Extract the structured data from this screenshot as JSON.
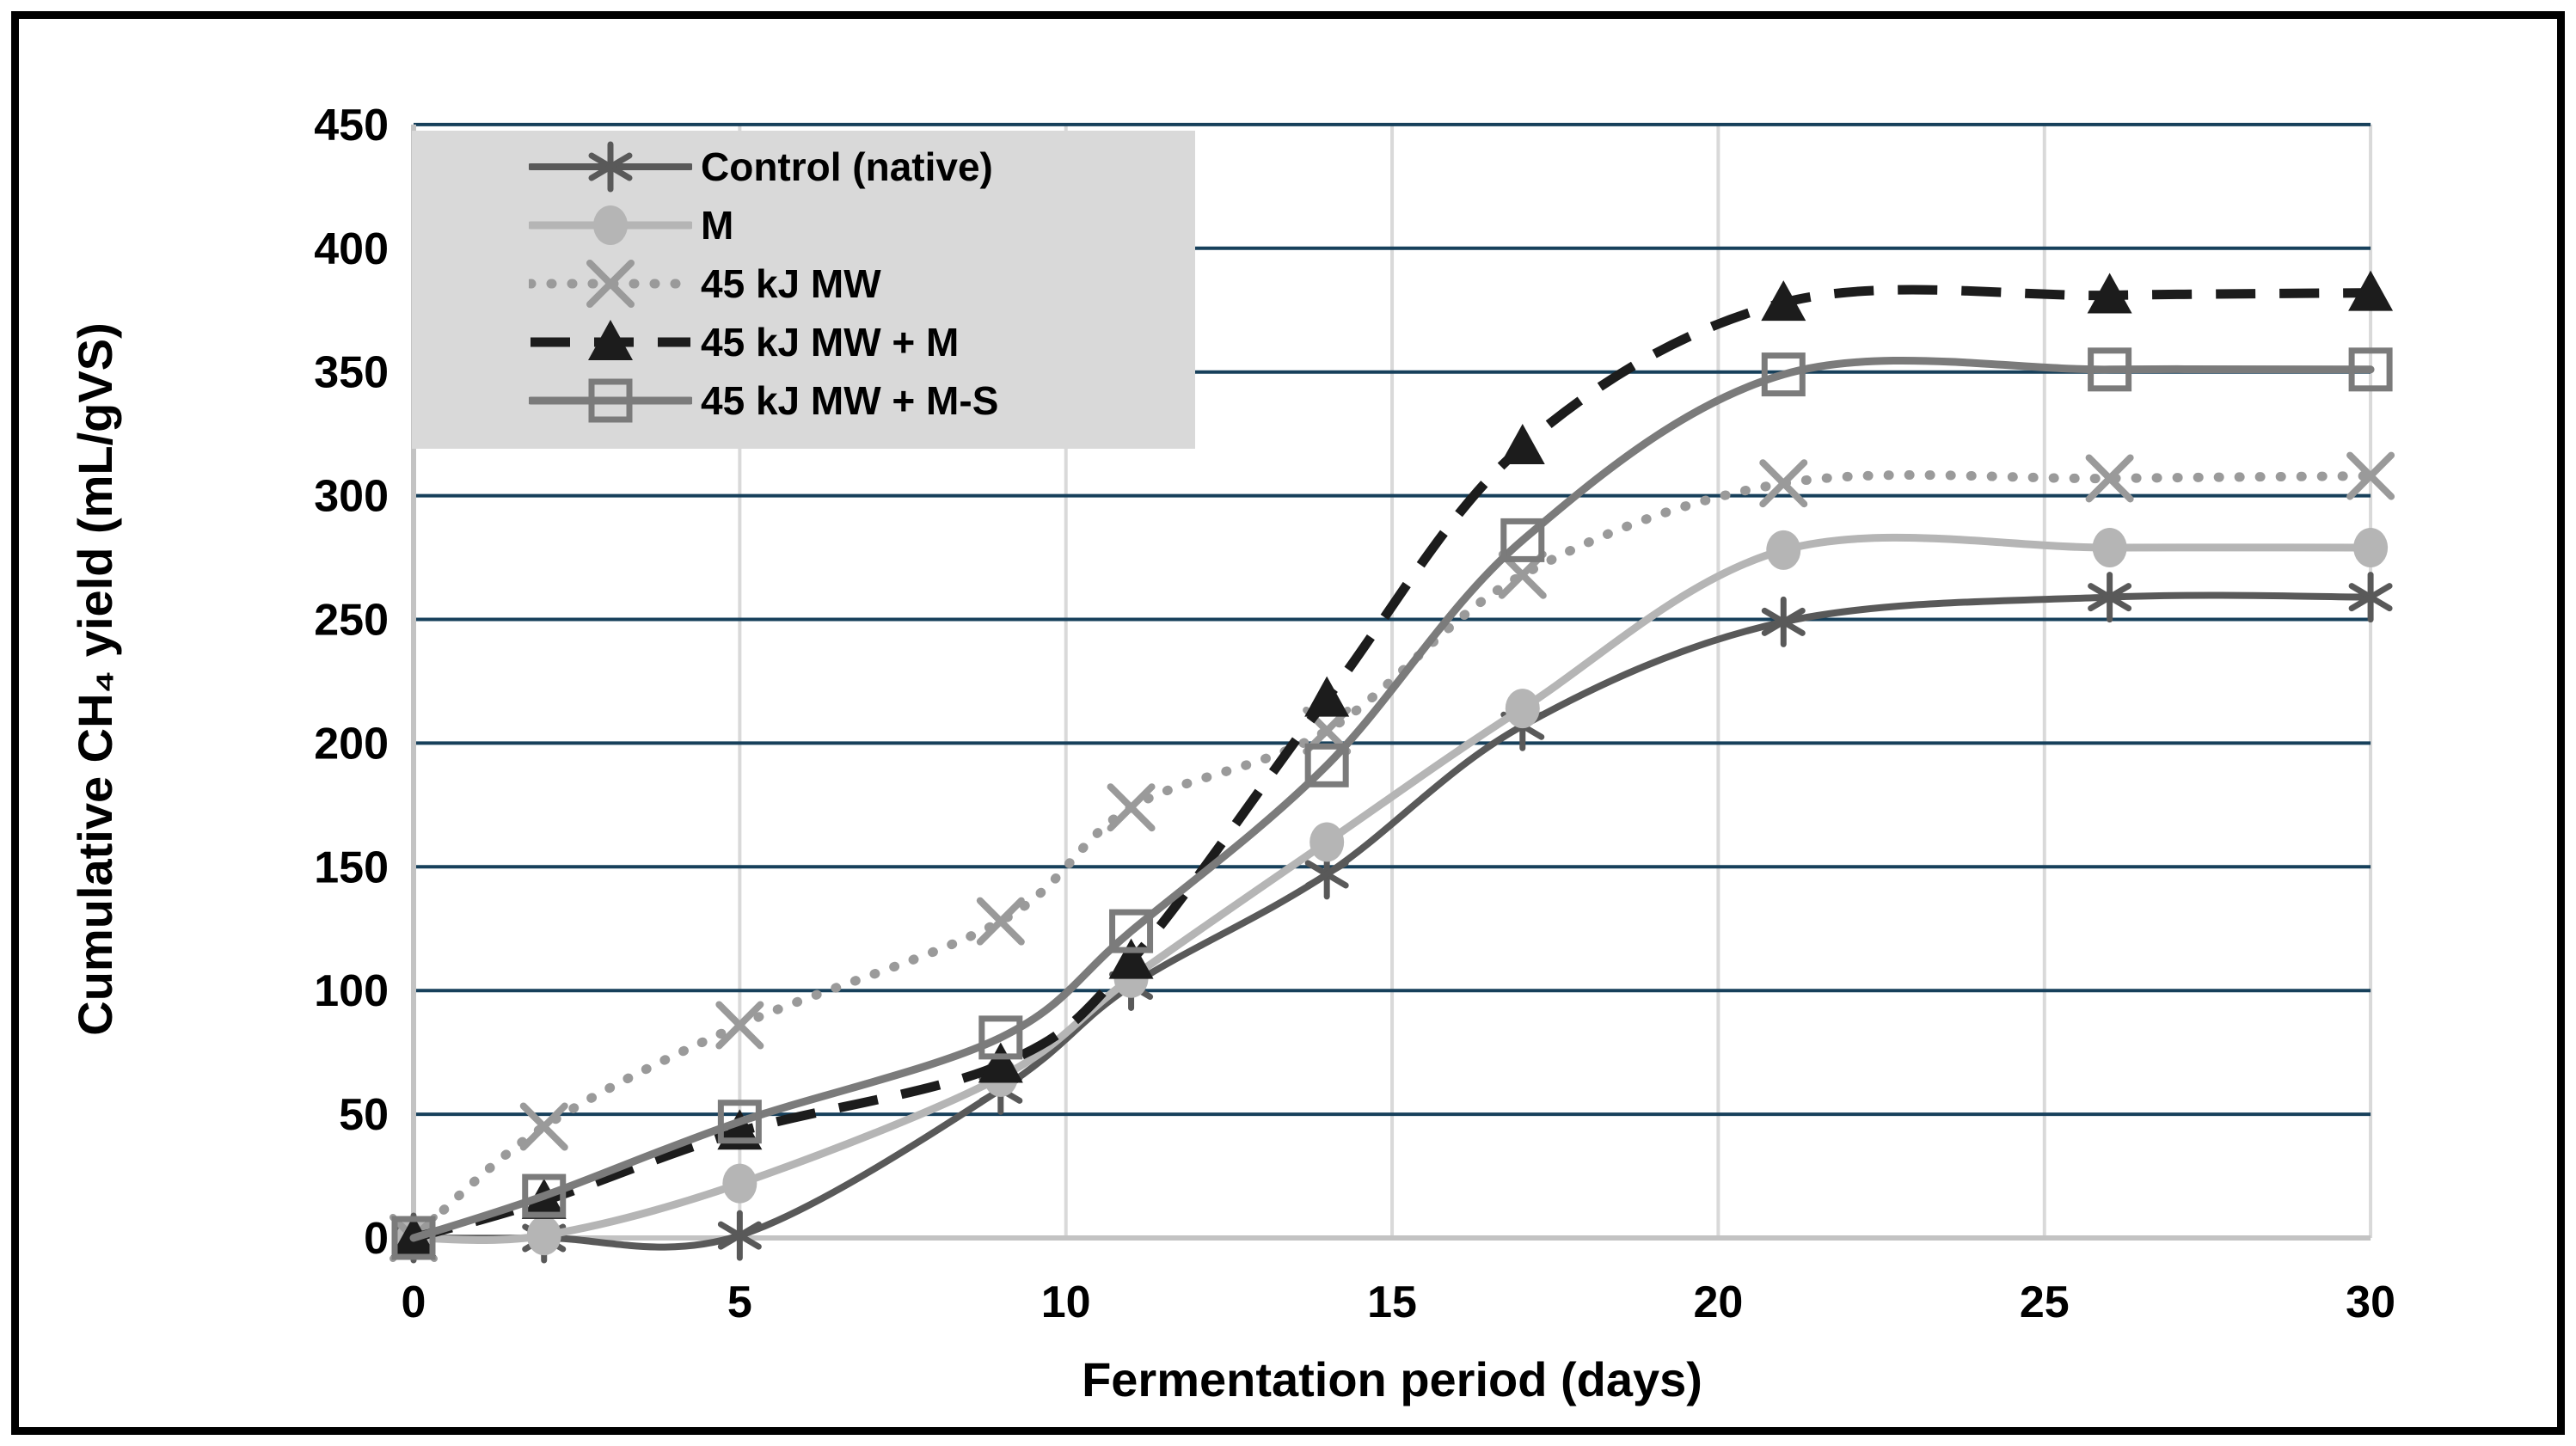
{
  "chart_data": {
    "type": "line",
    "title": "",
    "xlabel": "Fermentation period (days)",
    "ylabel": "Cumulative CH₄ yield (mL/gVS)",
    "x": [
      0,
      2,
      5,
      9,
      11,
      14,
      17,
      21,
      26,
      30
    ],
    "series": [
      {
        "name": "Control (native)",
        "values": [
          0,
          0,
          1,
          60,
          102,
          147,
          207,
          249,
          259,
          259
        ],
        "color": "#595959",
        "style": "solid",
        "marker": "asterisk"
      },
      {
        "name": "M",
        "values": [
          0,
          1,
          22,
          65,
          105,
          160,
          214,
          278,
          279,
          279
        ],
        "color": "#b5b5b5",
        "style": "solid",
        "marker": "circle-filled"
      },
      {
        "name": "45 kJ MW",
        "values": [
          0,
          45,
          86,
          128,
          174,
          205,
          268,
          305,
          307,
          308
        ],
        "color": "#9a9a9a",
        "style": "dotted",
        "marker": "x"
      },
      {
        "name": "45 kJ MW + M",
        "values": [
          0,
          15,
          43,
          70,
          112,
          218,
          320,
          378,
          381,
          382
        ],
        "color": "#1c1c1c",
        "style": "dashed",
        "marker": "triangle-filled"
      },
      {
        "name": "45 kJ MW + M-S",
        "values": [
          0,
          17,
          47,
          81,
          124,
          191,
          282,
          349,
          351,
          351
        ],
        "color": "#7b7b7b",
        "style": "solid",
        "marker": "square-open"
      }
    ],
    "x_ticks": [
      0,
      5,
      10,
      15,
      20,
      25,
      30
    ],
    "y_ticks": [
      0,
      50,
      100,
      150,
      200,
      250,
      300,
      350,
      400,
      450
    ],
    "xlim": [
      0,
      30
    ],
    "ylim": [
      0,
      450
    ],
    "grid": {
      "horizontal_color": "#17405b",
      "vertical_color": "#d9d9d9",
      "axis_color": "#c3c3c3",
      "horizontal_on": true,
      "vertical_on": true
    },
    "legend": {
      "position": "top-left",
      "background": "#d9d9d9",
      "text_color": "#000000"
    },
    "tick_label_color": "#000000",
    "axis_title_color": "#000000",
    "frame_border_color": "#000000"
  }
}
